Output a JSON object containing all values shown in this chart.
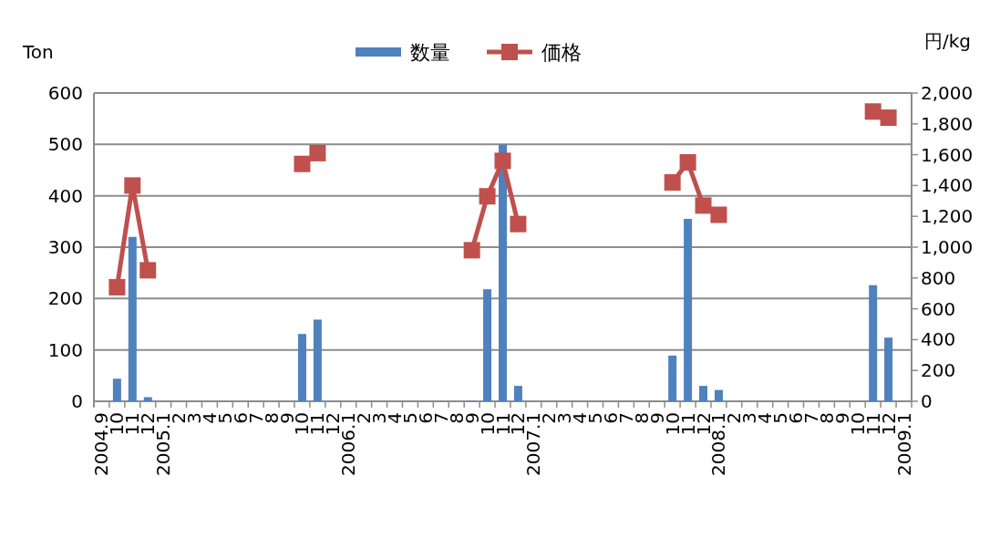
{
  "chart_data": {
    "type": "bar",
    "ylabel": "Ton",
    "y2label": "円/kg",
    "categories": [
      "2004.9",
      "10",
      "11",
      "12",
      "2005.1",
      "2",
      "3",
      "4",
      "5",
      "6",
      "7",
      "8",
      "9",
      "10",
      "11",
      "12",
      "2006.1",
      "2",
      "3",
      "4",
      "5",
      "6",
      "7",
      "8",
      "9",
      "10",
      "11",
      "12",
      "2007.1",
      "2",
      "3",
      "4",
      "5",
      "6",
      "7",
      "8",
      "9",
      "10",
      "11",
      "12",
      "2008.1",
      "2",
      "3",
      "4",
      "5",
      "6",
      "7",
      "8",
      "9",
      "10",
      "11",
      "12",
      "2009.1"
    ],
    "series": [
      {
        "name": "数量",
        "color": "#4f81bd",
        "values": [
          null,
          44,
          320,
          8,
          null,
          null,
          null,
          null,
          null,
          null,
          null,
          null,
          null,
          131,
          159,
          null,
          null,
          null,
          null,
          null,
          null,
          null,
          null,
          null,
          1,
          218,
          500,
          30,
          null,
          null,
          null,
          null,
          null,
          null,
          null,
          null,
          null,
          89,
          355,
          30,
          22,
          null,
          null,
          null,
          null,
          null,
          null,
          null,
          null,
          null,
          226,
          124,
          null
        ]
      },
      {
        "name": "価格",
        "type": "line",
        "axis": "y2",
        "color": "#c0504d",
        "values": [
          null,
          740,
          1400,
          850,
          null,
          null,
          null,
          null,
          null,
          null,
          null,
          null,
          null,
          1540,
          1610,
          null,
          null,
          null,
          null,
          null,
          null,
          null,
          null,
          null,
          980,
          1330,
          1560,
          1150,
          null,
          null,
          null,
          null,
          null,
          null,
          null,
          null,
          null,
          1420,
          1550,
          1270,
          1210,
          null,
          null,
          null,
          null,
          null,
          null,
          null,
          null,
          null,
          1880,
          1840,
          null
        ]
      }
    ],
    "ylim": [
      0,
      600
    ],
    "yticks": [
      0,
      100,
      200,
      300,
      400,
      500,
      600
    ],
    "y2lim": [
      0,
      2000
    ],
    "y2ticks": [
      0,
      200,
      400,
      600,
      800,
      {
        "value": 1000,
        "label": "1,000"
      },
      {
        "value": 1200,
        "label": "1,200"
      },
      {
        "value": 1400,
        "label": "1,400"
      },
      {
        "value": 1600,
        "label": "1,600"
      },
      {
        "value": 1800,
        "label": "1,800"
      },
      {
        "value": 2000,
        "label": "2,000"
      }
    ],
    "grid": "y",
    "legend": "top",
    "marker": "square"
  }
}
